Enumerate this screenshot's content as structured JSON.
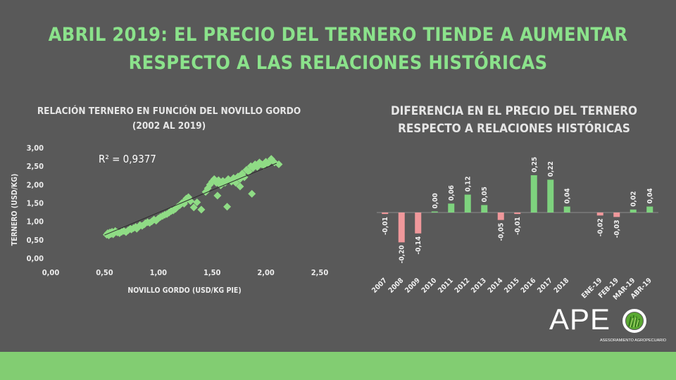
{
  "title": {
    "line1": "ABRIL 2019: EL PRECIO DEL TERNERO TIENDE A AUMENTAR",
    "line2": "RESPECTO A LAS RELACIONES HISTÓRICAS"
  },
  "colors": {
    "background": "#595959",
    "title": "#8be28b",
    "positive_bar": "#7ed37e",
    "negative_bar": "#f0989b",
    "scatter_point": "#8fdc85",
    "footer": "#82cd72"
  },
  "logo": {
    "text": "APE",
    "subtitle": "ASESORAMIENTO AGROPECUARIO",
    "icon": "grass-circle-icon"
  },
  "chart_data": [
    {
      "type": "scatter",
      "title_line1": "RELACIÓN TERNERO EN FUNCIÓN DEL NOVILLO GORDO",
      "title_line2": "(2002 AL 2019)",
      "xlabel": "NOVILLO GORDO (USD/KG PIE)",
      "ylabel": "TERNERO (USD/KG)",
      "xlim": [
        0,
        2.5
      ],
      "ylim": [
        0,
        3
      ],
      "x_ticks": [
        "0,00",
        "0,50",
        "1,00",
        "1,50",
        "2,00",
        "2,50"
      ],
      "y_ticks": [
        "0,00",
        "0,50",
        "1,00",
        "1,50",
        "2,00",
        "2,50",
        "3,00"
      ],
      "annotation": "R² = 0,9377",
      "trendline": {
        "slope": 1.22,
        "intercept": 0.02
      },
      "points": [
        [
          0.52,
          0.64
        ],
        [
          0.53,
          0.68
        ],
        [
          0.54,
          0.62
        ],
        [
          0.55,
          0.7
        ],
        [
          0.56,
          0.66
        ],
        [
          0.57,
          0.72
        ],
        [
          0.58,
          0.65
        ],
        [
          0.59,
          0.69
        ],
        [
          0.6,
          0.74
        ],
        [
          0.62,
          0.7
        ],
        [
          0.64,
          0.68
        ],
        [
          0.66,
          0.72
        ],
        [
          0.68,
          0.74
        ],
        [
          0.7,
          0.71
        ],
        [
          0.72,
          0.76
        ],
        [
          0.74,
          0.8
        ],
        [
          0.75,
          0.78
        ],
        [
          0.77,
          0.82
        ],
        [
          0.79,
          0.85
        ],
        [
          0.8,
          0.8
        ],
        [
          0.82,
          0.86
        ],
        [
          0.83,
          0.9
        ],
        [
          0.85,
          0.88
        ],
        [
          0.87,
          0.92
        ],
        [
          0.88,
          0.95
        ],
        [
          0.9,
          0.98
        ],
        [
          0.92,
          0.96
        ],
        [
          0.94,
          1.0
        ],
        [
          0.96,
          1.05
        ],
        [
          0.98,
          1.02
        ],
        [
          1.0,
          1.08
        ],
        [
          1.02,
          1.12
        ],
        [
          1.04,
          1.15
        ],
        [
          1.06,
          1.18
        ],
        [
          1.08,
          1.2
        ],
        [
          1.1,
          1.24
        ],
        [
          1.12,
          1.28
        ],
        [
          1.14,
          1.3
        ],
        [
          1.16,
          1.34
        ],
        [
          1.18,
          1.4
        ],
        [
          1.2,
          1.44
        ],
        [
          1.22,
          1.5
        ],
        [
          1.24,
          1.48
        ],
        [
          1.25,
          1.56
        ],
        [
          1.26,
          1.62
        ],
        [
          1.28,
          1.66
        ],
        [
          1.3,
          1.55
        ],
        [
          1.33,
          1.38
        ],
        [
          1.36,
          1.52
        ],
        [
          1.4,
          1.32
        ],
        [
          1.44,
          1.8
        ],
        [
          1.46,
          1.9
        ],
        [
          1.48,
          2.0
        ],
        [
          1.5,
          2.08
        ],
        [
          1.52,
          2.15
        ],
        [
          1.54,
          2.05
        ],
        [
          1.56,
          2.12
        ],
        [
          1.58,
          1.98
        ],
        [
          1.6,
          2.1
        ],
        [
          1.62,
          2.05
        ],
        [
          1.64,
          1.4
        ],
        [
          1.65,
          2.15
        ],
        [
          1.68,
          2.08
        ],
        [
          1.7,
          2.18
        ],
        [
          1.72,
          2.05
        ],
        [
          1.74,
          2.22
        ],
        [
          1.76,
          2.15
        ],
        [
          1.78,
          2.3
        ],
        [
          1.8,
          2.2
        ],
        [
          1.82,
          2.4
        ],
        [
          1.84,
          2.35
        ],
        [
          1.86,
          2.5
        ],
        [
          1.88,
          2.45
        ],
        [
          1.9,
          2.55
        ],
        [
          1.92,
          2.48
        ],
        [
          1.94,
          2.6
        ],
        [
          1.96,
          2.55
        ],
        [
          1.98,
          2.52
        ],
        [
          2.0,
          2.62
        ],
        [
          2.02,
          2.58
        ],
        [
          2.05,
          2.7
        ],
        [
          2.08,
          2.6
        ],
        [
          2.12,
          2.55
        ],
        [
          1.87,
          1.75
        ],
        [
          1.76,
          1.95
        ],
        [
          1.55,
          1.7
        ]
      ]
    },
    {
      "type": "bar",
      "title_line1": "DIFERENCIA EN EL PRECIO DEL TERNERO",
      "title_line2": "RESPECTO A RELACIONES HISTÓRICAS",
      "categories": [
        "2007",
        "2008",
        "2009",
        "2010",
        "2011",
        "2012",
        "2013",
        "2014",
        "2015",
        "2016",
        "2017",
        "2018",
        "",
        "ENE-19",
        "FEB-19",
        "MAR-19",
        "ABR-19"
      ],
      "values": [
        -0.01,
        -0.2,
        -0.14,
        0.0,
        0.06,
        0.12,
        0.05,
        -0.05,
        -0.01,
        0.25,
        0.22,
        0.04,
        null,
        -0.02,
        -0.03,
        0.02,
        0.04
      ],
      "labels": [
        "-0,01",
        "-0,20",
        "-0,14",
        "0,00",
        "0,06",
        "0,12",
        "0,05",
        "-0,05",
        "-0,01",
        "0,25",
        "0,22",
        "0,04",
        "",
        "-0,02",
        "-0,03",
        "0,02",
        "0,04"
      ]
    }
  ]
}
